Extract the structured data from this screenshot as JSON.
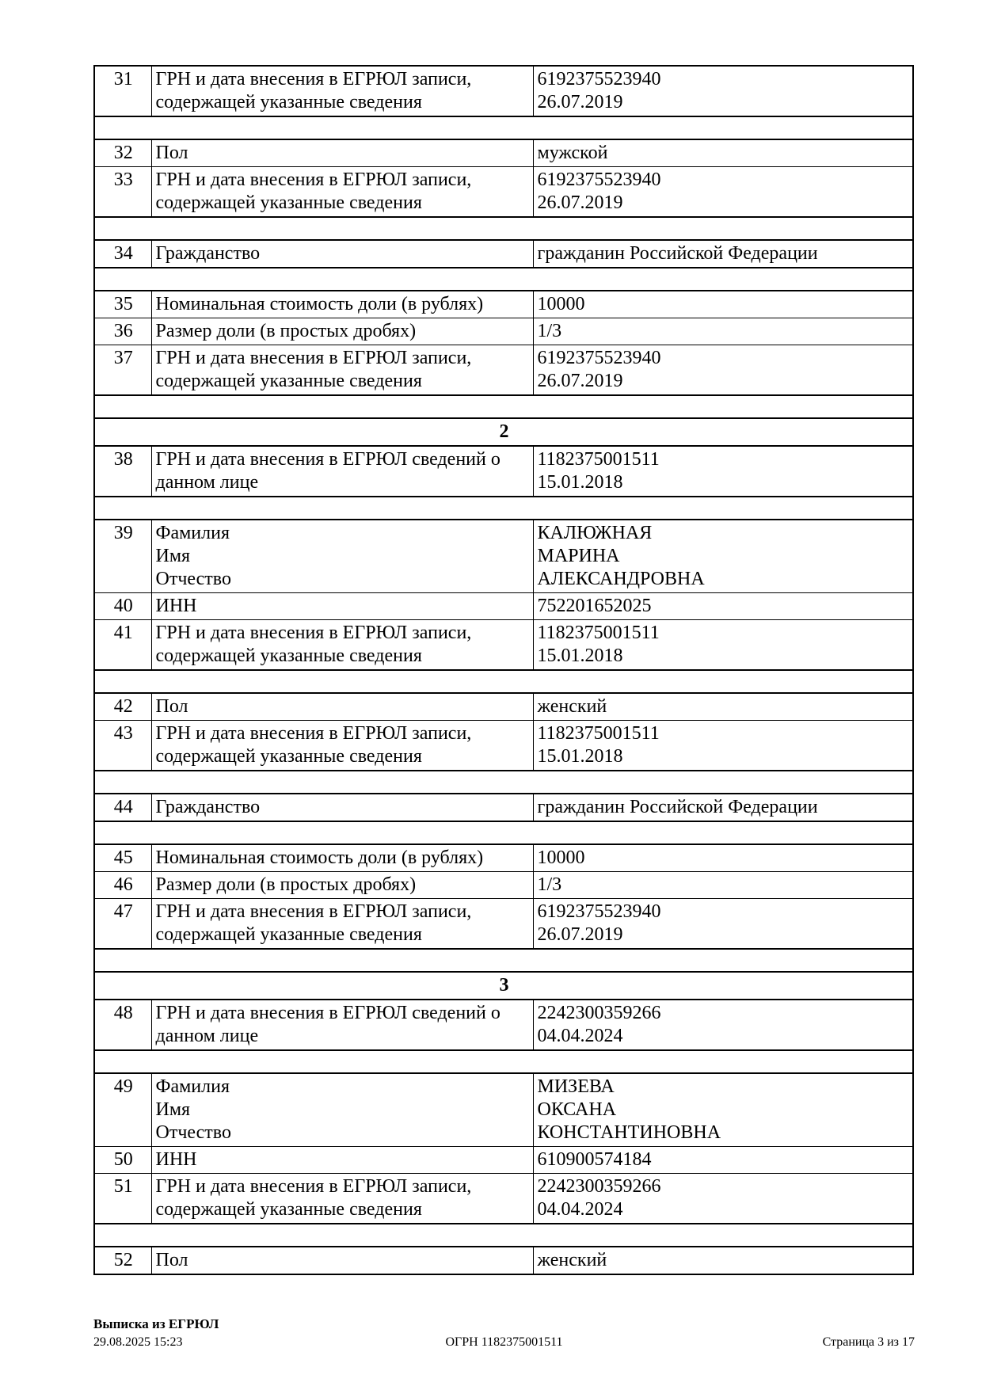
{
  "table": {
    "rows": [
      {
        "type": "data",
        "num": "31",
        "label": [
          "ГРН и дата внесения в ЕГРЮЛ записи,",
          "содержащей указанные сведения"
        ],
        "value": [
          "6192375523940",
          "26.07.2019"
        ]
      },
      {
        "type": "spacer"
      },
      {
        "type": "data",
        "num": "32",
        "label": [
          "Пол"
        ],
        "value": [
          "мужской"
        ]
      },
      {
        "type": "data",
        "num": "33",
        "label": [
          "ГРН и дата внесения в ЕГРЮЛ записи,",
          "содержащей указанные сведения"
        ],
        "value": [
          "6192375523940",
          "26.07.2019"
        ]
      },
      {
        "type": "spacer"
      },
      {
        "type": "data",
        "num": "34",
        "label": [
          "Гражданство"
        ],
        "value": [
          "гражданин Российской Федерации"
        ]
      },
      {
        "type": "spacer"
      },
      {
        "type": "data",
        "num": "35",
        "label": [
          "Номинальная стоимость доли (в рублях)"
        ],
        "value": [
          "10000"
        ]
      },
      {
        "type": "data",
        "num": "36",
        "label": [
          "Размер доли (в простых дробях)"
        ],
        "value": [
          "1/3"
        ]
      },
      {
        "type": "data",
        "num": "37",
        "label": [
          "ГРН и дата внесения в ЕГРЮЛ записи,",
          "содержащей указанные сведения"
        ],
        "value": [
          "6192375523940",
          "26.07.2019"
        ]
      },
      {
        "type": "spacer"
      },
      {
        "type": "section",
        "label": "2"
      },
      {
        "type": "data",
        "num": "38",
        "label": [
          "ГРН и дата внесения в ЕГРЮЛ сведений о",
          "данном лице"
        ],
        "value": [
          "1182375001511",
          "15.01.2018"
        ]
      },
      {
        "type": "spacer"
      },
      {
        "type": "data",
        "num": "39",
        "label": [
          "Фамилия",
          "Имя",
          "Отчество"
        ],
        "value": [
          "КАЛЮЖНАЯ",
          "МАРИНА",
          "АЛЕКСАНДРОВНА"
        ]
      },
      {
        "type": "data",
        "num": "40",
        "label": [
          "ИНН"
        ],
        "value": [
          "752201652025"
        ]
      },
      {
        "type": "data",
        "num": "41",
        "label": [
          "ГРН и дата внесения в ЕГРЮЛ записи,",
          "содержащей указанные сведения"
        ],
        "value": [
          "1182375001511",
          "15.01.2018"
        ]
      },
      {
        "type": "spacer"
      },
      {
        "type": "data",
        "num": "42",
        "label": [
          "Пол"
        ],
        "value": [
          "женский"
        ]
      },
      {
        "type": "data",
        "num": "43",
        "label": [
          "ГРН и дата внесения в ЕГРЮЛ записи,",
          "содержащей указанные сведения"
        ],
        "value": [
          "1182375001511",
          "15.01.2018"
        ]
      },
      {
        "type": "spacer"
      },
      {
        "type": "data",
        "num": "44",
        "label": [
          "Гражданство"
        ],
        "value": [
          "гражданин Российской Федерации"
        ]
      },
      {
        "type": "spacer"
      },
      {
        "type": "data",
        "num": "45",
        "label": [
          "Номинальная стоимость доли (в рублях)"
        ],
        "value": [
          "10000"
        ]
      },
      {
        "type": "data",
        "num": "46",
        "label": [
          "Размер доли (в простых дробях)"
        ],
        "value": [
          "1/3"
        ]
      },
      {
        "type": "data",
        "num": "47",
        "label": [
          "ГРН и дата внесения в ЕГРЮЛ записи,",
          "содержащей указанные сведения"
        ],
        "value": [
          "6192375523940",
          "26.07.2019"
        ]
      },
      {
        "type": "spacer"
      },
      {
        "type": "section",
        "label": "3"
      },
      {
        "type": "data",
        "num": "48",
        "label": [
          "ГРН и дата внесения в ЕГРЮЛ сведений о",
          "данном лице"
        ],
        "value": [
          "2242300359266",
          "04.04.2024"
        ]
      },
      {
        "type": "spacer"
      },
      {
        "type": "data",
        "num": "49",
        "label": [
          "Фамилия",
          "Имя",
          "Отчество"
        ],
        "value": [
          "МИЗЕВА",
          "ОКСАНА",
          "КОНСТАНТИНОВНА"
        ]
      },
      {
        "type": "data",
        "num": "50",
        "label": [
          "ИНН"
        ],
        "value": [
          "610900574184"
        ]
      },
      {
        "type": "data",
        "num": "51",
        "label": [
          "ГРН и дата внесения в ЕГРЮЛ записи,",
          "содержащей указанные сведения"
        ],
        "value": [
          "2242300359266",
          "04.04.2024"
        ]
      },
      {
        "type": "spacer"
      },
      {
        "type": "data",
        "num": "52",
        "label": [
          "Пол"
        ],
        "value": [
          "женский"
        ]
      }
    ]
  },
  "footer": {
    "doc_title": "Выписка из ЕГРЮЛ",
    "timestamp": "29.08.2025 15:23",
    "ogrn": "ОГРН 1182375001511",
    "page_indicator": "Страница 3 из 17"
  },
  "colors": {
    "text": "#000000",
    "background": "#ffffff",
    "border": "#000000"
  }
}
